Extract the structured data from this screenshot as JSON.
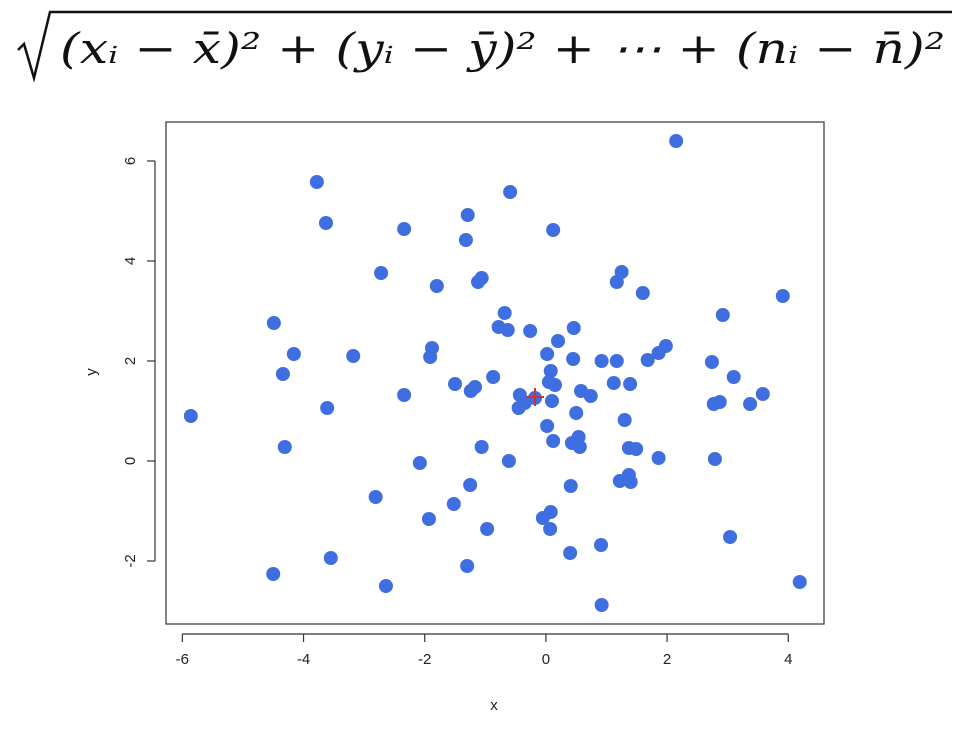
{
  "chart_data": {
    "type": "scatter",
    "formula": "(xᵢ − x̄)² + (yᵢ − ȳ)² + ⋯ + (nᵢ − n̄)²",
    "x_label": "x",
    "y_label": "y",
    "xlim": [
      -6.27,
      4.59
    ],
    "ylim": [
      -3.26,
      6.78
    ],
    "xticks": [
      -6,
      -4,
      -2,
      0,
      2,
      4
    ],
    "yticks": [
      -2,
      0,
      2,
      4,
      6
    ],
    "color": "#3f6ee0",
    "x": [
      -5.86,
      -4.49,
      -4.16,
      -4.34,
      -4.31,
      -4.5,
      -3.78,
      -3.63,
      -3.61,
      -3.55,
      -3.18,
      -2.81,
      -2.64,
      -2.72,
      -2.34,
      -2.34,
      -2.08,
      -1.93,
      -1.88,
      -1.91,
      -1.8,
      -1.5,
      -1.52,
      -1.29,
      -1.32,
      -1.24,
      -1.17,
      -1.25,
      -1.3,
      -1.12,
      -1.06,
      -1.06,
      -0.97,
      -0.87,
      -0.78,
      -0.68,
      -0.63,
      -0.59,
      -0.61,
      -0.45,
      -0.43,
      -0.35,
      -0.26,
      -0.18,
      -0.05,
      0.02,
      0.05,
      0.08,
      0.1,
      0.15,
      0.12,
      0.02,
      0.12,
      0.08,
      0.07,
      0.2,
      0.46,
      0.45,
      0.5,
      0.54,
      0.43,
      0.56,
      0.41,
      0.4,
      0.58,
      0.74,
      0.91,
      0.92,
      0.92,
      1.12,
      1.17,
      1.17,
      1.25,
      1.22,
      1.3,
      1.37,
      1.37,
      1.4,
      1.39,
      1.49,
      1.6,
      1.68,
      1.86,
      1.86,
      1.98,
      2.15,
      2.74,
      2.77,
      2.79,
      2.87,
      2.92,
      3.04,
      3.1,
      3.37,
      3.58,
      3.91,
      4.19
    ],
    "values": [
      0.9,
      2.76,
      2.14,
      1.74,
      0.28,
      -2.26,
      5.58,
      4.76,
      1.06,
      -1.94,
      2.1,
      -0.72,
      -2.5,
      3.76,
      4.64,
      1.32,
      -0.04,
      -1.16,
      2.26,
      2.08,
      3.5,
      1.54,
      -0.86,
      4.92,
      4.42,
      1.4,
      1.48,
      -0.48,
      -2.1,
      3.58,
      3.66,
      0.28,
      -1.36,
      1.68,
      2.68,
      2.96,
      2.62,
      5.38,
      0,
      1.06,
      1.32,
      1.16,
      2.6,
      1.26,
      -1.14,
      2.14,
      1.58,
      1.8,
      1.2,
      1.52,
      4.62,
      0.7,
      0.4,
      -1.02,
      -1.36,
      2.4,
      2.66,
      2.04,
      0.96,
      0.48,
      0.36,
      0.28,
      -0.5,
      -1.84,
      1.4,
      1.3,
      -1.68,
      2,
      -2.88,
      1.56,
      2,
      3.58,
      3.78,
      -0.4,
      0.82,
      0.26,
      -0.28,
      -0.42,
      1.54,
      0.24,
      3.36,
      2.02,
      2.16,
      0.06,
      2.3,
      6.4,
      1.98,
      1.14,
      0.04,
      1.18,
      2.92,
      -1.52,
      1.68,
      1.14,
      1.34,
      3.3,
      -2.42
    ],
    "mean_marker": {
      "x": -0.18,
      "y": 1.28,
      "color": "#d0303a"
    }
  }
}
